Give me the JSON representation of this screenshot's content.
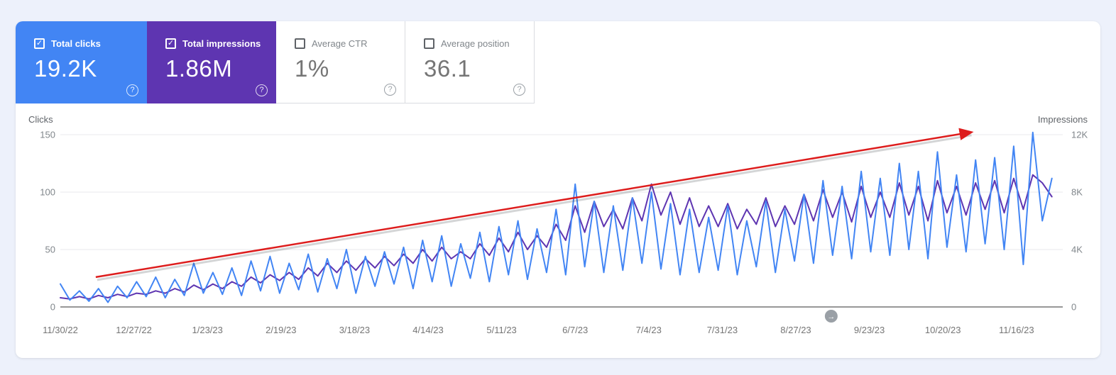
{
  "cards": [
    {
      "id": "total-clicks",
      "label": "Total clicks",
      "value": "19.2K",
      "selected": true,
      "color": "#4285f4"
    },
    {
      "id": "total-impressions",
      "label": "Total impressions",
      "value": "1.86M",
      "selected": true,
      "color": "#5e35b1"
    },
    {
      "id": "average-ctr",
      "label": "Average CTR",
      "value": "1%",
      "selected": false
    },
    {
      "id": "average-position",
      "label": "Average position",
      "value": "36.1",
      "selected": false
    }
  ],
  "help_icon_glyph": "?",
  "checkbox_check_glyph": "✓",
  "colors": {
    "clicks_line": "#4285f4",
    "impressions_line": "#5e35b1",
    "trend_arrow": "#dd1d1d",
    "grid_line": "#e8eaed",
    "baseline": "#757575",
    "page_background": "#edf1fb",
    "timeline_marker": "#9aa0a6"
  },
  "chart_data": {
    "type": "line",
    "x_start_date": "11/30/22",
    "x_step_days": 3.5,
    "x_total_days": 368,
    "x_tick_days": [
      0,
      27,
      54,
      81,
      108,
      135,
      162,
      189,
      216,
      243,
      270,
      297,
      324,
      351
    ],
    "x_tick_labels": [
      "11/30/22",
      "12/27/22",
      "1/23/23",
      "2/19/23",
      "3/18/23",
      "4/14/23",
      "5/11/23",
      "6/7/23",
      "7/4/23",
      "7/31/23",
      "8/27/23",
      "9/23/23",
      "10/20/23",
      "11/16/23"
    ],
    "left_axis": {
      "label": "Clicks",
      "ticks": [
        150,
        100,
        50,
        0
      ],
      "tick_labels": [
        "150",
        "100",
        "50",
        "0"
      ],
      "ylim": [
        0,
        150
      ]
    },
    "right_axis": {
      "label": "Impressions",
      "ticks": [
        12000,
        8000,
        4000,
        0
      ],
      "tick_labels": [
        "12K",
        "8K",
        "4K",
        "0"
      ],
      "ylim": [
        0,
        12000
      ]
    },
    "grid": true,
    "series": [
      {
        "name": "Clicks",
        "axis": "left",
        "color": "#4285f4",
        "values": [
          20,
          6,
          14,
          5,
          16,
          4,
          18,
          8,
          22,
          9,
          26,
          8,
          24,
          10,
          38,
          12,
          30,
          11,
          34,
          10,
          40,
          14,
          44,
          12,
          38,
          15,
          46,
          13,
          42,
          16,
          50,
          12,
          44,
          18,
          48,
          20,
          52,
          16,
          58,
          22,
          62,
          18,
          55,
          25,
          65,
          22,
          70,
          28,
          75,
          24,
          68,
          30,
          85,
          28,
          107,
          35,
          92,
          30,
          88,
          32,
          95,
          38,
          100,
          33,
          90,
          28,
          85,
          30,
          78,
          32,
          88,
          28,
          75,
          35,
          92,
          30,
          85,
          40,
          98,
          38,
          110,
          45,
          105,
          42,
          118,
          48,
          112,
          45,
          125,
          50,
          118,
          42,
          135,
          52,
          115,
          48,
          128,
          55,
          130,
          50,
          140,
          37,
          152,
          75,
          112
        ]
      },
      {
        "name": "Impressions",
        "axis": "right",
        "color": "#5e35b1",
        "values": [
          640,
          560,
          720,
          560,
          800,
          640,
          880,
          720,
          960,
          880,
          1120,
          960,
          1280,
          1040,
          1520,
          1200,
          1600,
          1280,
          1760,
          1440,
          2080,
          1680,
          2240,
          1840,
          2400,
          1920,
          2720,
          2160,
          3040,
          2400,
          3200,
          2560,
          3360,
          2720,
          3520,
          2880,
          3680,
          3040,
          4000,
          3200,
          4160,
          3360,
          3840,
          3360,
          4400,
          3600,
          4800,
          3840,
          5200,
          4000,
          4960,
          4160,
          5760,
          4640,
          7040,
          5200,
          7360,
          5600,
          6800,
          5440,
          7600,
          6000,
          8560,
          6400,
          8000,
          5760,
          7600,
          5600,
          7040,
          5600,
          7200,
          5440,
          6800,
          5760,
          7600,
          5600,
          7040,
          5760,
          7840,
          6000,
          8160,
          6240,
          8000,
          5920,
          8400,
          6240,
          8000,
          6240,
          8640,
          6400,
          8400,
          6000,
          8800,
          6560,
          8400,
          6400,
          8640,
          6800,
          8800,
          6560,
          8960,
          6800,
          9200,
          8640,
          7680
        ]
      }
    ],
    "trend_arrow": {
      "from_day": 13,
      "from_clicks": 26,
      "to_day": 334,
      "to_clicks": 152,
      "color": "#dd1d1d"
    },
    "timeline_marker": {
      "day": 283,
      "icon": "arrow-right",
      "glyph": "→",
      "color": "#9aa0a6"
    }
  }
}
